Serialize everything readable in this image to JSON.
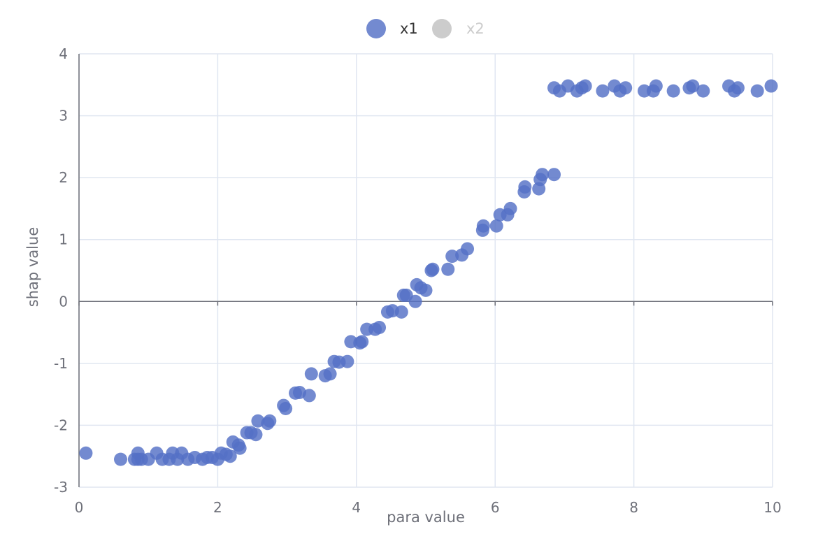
{
  "legend": {
    "items": [
      {
        "label": "x1",
        "color": "#5470c6",
        "active": true
      },
      {
        "label": "x2",
        "color": "#cccccc",
        "active": false
      }
    ],
    "inactive_text_color": "#cccccc",
    "active_text_color": "#333333"
  },
  "colors": {
    "point": "#5470c6",
    "grid": "#e0e6f1",
    "axis": "#6e7079",
    "zero_line": "#6e7079"
  },
  "chart_data": {
    "type": "scatter",
    "title": "",
    "xlabel": "para value",
    "ylabel": "shap value",
    "xlim": [
      0,
      10
    ],
    "ylim": [
      -3,
      4
    ],
    "x_ticks": [
      0,
      2,
      4,
      6,
      8,
      10
    ],
    "y_ticks": [
      -3,
      -2,
      -1,
      0,
      1,
      2,
      3,
      4
    ],
    "grid": true,
    "legend_position": "top-center",
    "series": [
      {
        "name": "x1",
        "points": [
          [
            0.1,
            -2.45
          ],
          [
            0.6,
            -2.55
          ],
          [
            0.8,
            -2.55
          ],
          [
            0.85,
            -2.55
          ],
          [
            0.85,
            -2.45
          ],
          [
            0.9,
            -2.55
          ],
          [
            1.0,
            -2.55
          ],
          [
            1.12,
            -2.45
          ],
          [
            1.2,
            -2.55
          ],
          [
            1.3,
            -2.55
          ],
          [
            1.35,
            -2.45
          ],
          [
            1.42,
            -2.55
          ],
          [
            1.48,
            -2.45
          ],
          [
            1.57,
            -2.55
          ],
          [
            1.67,
            -2.52
          ],
          [
            1.78,
            -2.55
          ],
          [
            1.85,
            -2.52
          ],
          [
            1.92,
            -2.52
          ],
          [
            2.0,
            -2.55
          ],
          [
            2.05,
            -2.45
          ],
          [
            2.12,
            -2.47
          ],
          [
            2.18,
            -2.5
          ],
          [
            2.22,
            -2.27
          ],
          [
            2.3,
            -2.32
          ],
          [
            2.32,
            -2.37
          ],
          [
            2.42,
            -2.12
          ],
          [
            2.48,
            -2.12
          ],
          [
            2.55,
            -2.15
          ],
          [
            2.58,
            -1.93
          ],
          [
            2.72,
            -1.97
          ],
          [
            2.75,
            -1.93
          ],
          [
            2.95,
            -1.68
          ],
          [
            2.98,
            -1.73
          ],
          [
            3.12,
            -1.48
          ],
          [
            3.18,
            -1.47
          ],
          [
            3.32,
            -1.52
          ],
          [
            3.35,
            -1.17
          ],
          [
            3.55,
            -1.2
          ],
          [
            3.62,
            -1.17
          ],
          [
            3.68,
            -0.97
          ],
          [
            3.75,
            -0.98
          ],
          [
            3.87,
            -0.97
          ],
          [
            3.92,
            -0.65
          ],
          [
            4.05,
            -0.67
          ],
          [
            4.08,
            -0.65
          ],
          [
            4.15,
            -0.45
          ],
          [
            4.27,
            -0.45
          ],
          [
            4.33,
            -0.42
          ],
          [
            4.45,
            -0.17
          ],
          [
            4.52,
            -0.15
          ],
          [
            4.65,
            -0.17
          ],
          [
            4.68,
            0.1
          ],
          [
            4.72,
            0.1
          ],
          [
            4.85,
            0.0
          ],
          [
            4.87,
            0.27
          ],
          [
            4.93,
            0.22
          ],
          [
            5.0,
            0.18
          ],
          [
            5.08,
            0.5
          ],
          [
            5.1,
            0.52
          ],
          [
            5.32,
            0.52
          ],
          [
            5.38,
            0.73
          ],
          [
            5.52,
            0.75
          ],
          [
            5.6,
            0.85
          ],
          [
            5.82,
            1.15
          ],
          [
            5.83,
            1.22
          ],
          [
            6.02,
            1.22
          ],
          [
            6.07,
            1.4
          ],
          [
            6.18,
            1.4
          ],
          [
            6.22,
            1.5
          ],
          [
            6.42,
            1.77
          ],
          [
            6.43,
            1.85
          ],
          [
            6.63,
            1.82
          ],
          [
            6.65,
            1.97
          ],
          [
            6.68,
            2.05
          ],
          [
            6.85,
            2.05
          ],
          [
            6.85,
            3.45
          ],
          [
            6.93,
            3.4
          ],
          [
            7.05,
            3.48
          ],
          [
            7.18,
            3.4
          ],
          [
            7.25,
            3.45
          ],
          [
            7.3,
            3.48
          ],
          [
            7.55,
            3.4
          ],
          [
            7.72,
            3.48
          ],
          [
            7.8,
            3.4
          ],
          [
            7.88,
            3.45
          ],
          [
            8.15,
            3.4
          ],
          [
            8.28,
            3.4
          ],
          [
            8.32,
            3.48
          ],
          [
            8.57,
            3.4
          ],
          [
            8.8,
            3.45
          ],
          [
            8.85,
            3.48
          ],
          [
            9.0,
            3.4
          ],
          [
            9.37,
            3.48
          ],
          [
            9.45,
            3.4
          ],
          [
            9.5,
            3.45
          ],
          [
            9.78,
            3.4
          ],
          [
            9.98,
            3.48
          ]
        ]
      }
    ]
  }
}
